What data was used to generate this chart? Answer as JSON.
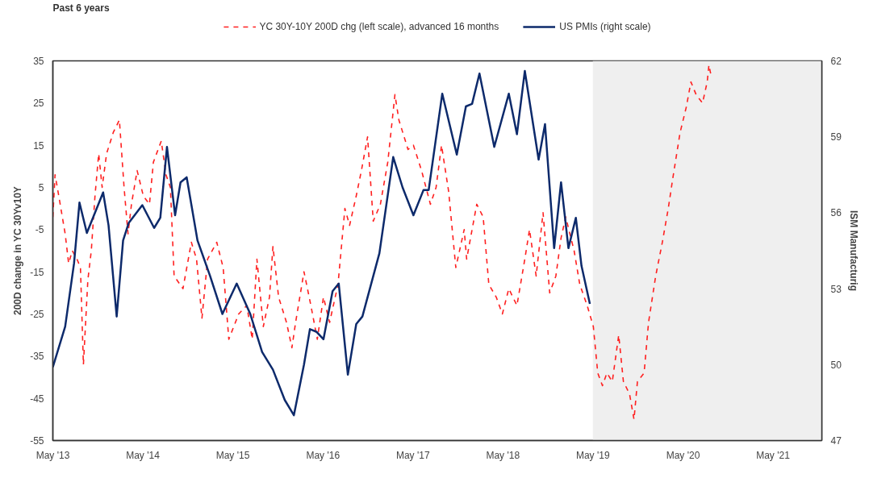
{
  "chart_data": {
    "type": "line",
    "title": "Past 6 years",
    "ylabel": "200D change in YC 30Yv10Y",
    "y2label": "ISM Manufacturig",
    "xlim": [
      "2013-05-01",
      "2021-11-15"
    ],
    "xticks": [
      {
        "value": "2013-05",
        "label": "May '13"
      },
      {
        "value": "2014-05",
        "label": "May '14"
      },
      {
        "value": "2015-05",
        "label": "May '15"
      },
      {
        "value": "2016-05",
        "label": "May '16"
      },
      {
        "value": "2017-05",
        "label": "May '17"
      },
      {
        "value": "2018-05",
        "label": "May '18"
      },
      {
        "value": "2019-05",
        "label": "May '19"
      },
      {
        "value": "2020-05",
        "label": "May '20"
      },
      {
        "value": "2021-05",
        "label": "May '21"
      }
    ],
    "ylim": [
      -55,
      35
    ],
    "yticks": [
      -55,
      -45,
      -35,
      -25,
      -15,
      -5,
      5,
      15,
      25,
      35
    ],
    "y2lim": [
      47,
      62
    ],
    "y2ticks": [
      47,
      50,
      53,
      56,
      59,
      62
    ],
    "grid": false,
    "legend": "top",
    "bands": [
      {
        "axis": "x",
        "from": "2019-05-01",
        "to": "2021-11-15",
        "color": "#efefef"
      }
    ],
    "series": [
      {
        "name": "YC 30Y-10Y 200D chg (left scale), advanced 16 months",
        "color": "#ff2020",
        "line_style": "dashed",
        "x": [
          "2013-05-01",
          "2013-05-10",
          "2013-05-25",
          "2013-06-20",
          "2013-07-04",
          "2013-07-19",
          "2013-08-07",
          "2013-08-21",
          "2013-09-02",
          "2013-09-20",
          "2013-10-04",
          "2013-10-19",
          "2013-11-03",
          "2013-11-17",
          "2013-12-05",
          "2014-01-01",
          "2014-01-26",
          "2014-02-14",
          "2014-03-02",
          "2014-03-16",
          "2014-04-08",
          "2014-05-03",
          "2014-05-28",
          "2014-06-13",
          "2014-07-15",
          "2014-08-03",
          "2014-08-21",
          "2014-09-05",
          "2014-10-11",
          "2014-11-14",
          "2014-12-05",
          "2014-12-27",
          "2015-01-19",
          "2015-02-25",
          "2015-03-23",
          "2015-04-15",
          "2015-05-25",
          "2015-06-27",
          "2015-07-19",
          "2015-08-07",
          "2015-09-02",
          "2015-09-27",
          "2015-10-11",
          "2015-11-03",
          "2015-12-05",
          "2015-12-27",
          "2016-01-11",
          "2016-02-14",
          "2016-03-13",
          "2016-04-08",
          "2016-05-03",
          "2016-05-28",
          "2016-07-01",
          "2016-07-29",
          "2016-08-17",
          "2016-09-13",
          "2016-10-04",
          "2016-10-29",
          "2016-11-21",
          "2016-12-20",
          "2017-01-19",
          "2017-02-17",
          "2017-03-05",
          "2017-04-11",
          "2017-05-03",
          "2017-06-05",
          "2017-07-11",
          "2017-08-03",
          "2017-08-25",
          "2017-09-23",
          "2017-10-22",
          "2017-11-25",
          "2017-12-05",
          "2018-01-15",
          "2018-02-10",
          "2018-03-05",
          "2018-04-04",
          "2018-04-29",
          "2018-05-25",
          "2018-06-27",
          "2018-07-29",
          "2018-08-17",
          "2018-09-13",
          "2018-10-11",
          "2018-11-07",
          "2018-12-02",
          "2018-12-23",
          "2019-01-11",
          "2019-02-14",
          "2019-03-09",
          "2019-04-08",
          "2019-05-03",
          "2019-05-21",
          "2019-06-09",
          "2019-06-27",
          "2019-07-19",
          "2019-08-14",
          "2019-09-02",
          "2019-09-27",
          "2019-10-15",
          "2019-10-29",
          "2019-11-25",
          "2019-12-13",
          "2020-01-11",
          "2020-02-07",
          "2020-03-02",
          "2020-03-20",
          "2020-04-19",
          "2020-05-14",
          "2020-06-02",
          "2020-06-23",
          "2020-07-19",
          "2020-08-07",
          "2020-08-14",
          "2020-08-21"
        ],
        "values": [
          -2,
          8,
          3,
          -6,
          -13,
          -10,
          -12,
          -14,
          -37,
          -17,
          -10,
          3,
          13,
          5,
          13,
          18,
          21,
          5,
          -6,
          1,
          9,
          3,
          1,
          11,
          16,
          8,
          5,
          -16,
          -19,
          -8,
          -12,
          -26,
          -12,
          -8,
          -14,
          -31,
          -25,
          -23,
          -31,
          -12,
          -28,
          -21,
          -9,
          -21,
          -27,
          -33,
          -27,
          -15,
          -23,
          -31,
          -21,
          -27,
          -18,
          0,
          -4,
          3,
          9,
          17,
          -3,
          1,
          11,
          27,
          21,
          14,
          15,
          9,
          1,
          5,
          15,
          4,
          -14,
          -5,
          -12,
          1,
          -2,
          -18,
          -21,
          -25,
          -19,
          -23,
          -12,
          -5,
          -16,
          -1,
          -20,
          -16,
          -7,
          -2,
          -10,
          -18,
          -23,
          -28,
          -39,
          -42,
          -39,
          -41,
          -30,
          -41,
          -44,
          -50,
          -41,
          -39,
          -27,
          -16,
          -8,
          0,
          7,
          18,
          24,
          30,
          27,
          25,
          30,
          34,
          32
        ]
      },
      {
        "name": "US PMIs (right scale)",
        "color": "#0d2a6b",
        "line_style": "solid",
        "axis": "y2",
        "x": [
          "2013-05-01",
          "2013-06-20",
          "2013-07-26",
          "2013-08-17",
          "2013-09-16",
          "2013-11-21",
          "2013-12-13",
          "2014-01-15",
          "2014-02-10",
          "2014-03-05",
          "2014-04-29",
          "2014-06-16",
          "2014-07-11",
          "2014-08-07",
          "2014-09-09",
          "2014-10-01",
          "2014-10-26",
          "2014-12-09",
          "2015-01-29",
          "2015-03-20",
          "2015-05-17",
          "2015-07-11",
          "2015-08-28",
          "2015-10-11",
          "2015-11-28",
          "2016-01-04",
          "2016-02-14",
          "2016-03-09",
          "2016-04-04",
          "2016-05-03",
          "2016-06-09",
          "2016-07-04",
          "2016-08-10",
          "2016-09-13",
          "2016-10-08",
          "2016-12-16",
          "2017-02-10",
          "2017-03-20",
          "2017-05-03",
          "2017-06-13",
          "2017-07-04",
          "2017-08-28",
          "2017-10-26",
          "2017-12-02",
          "2017-12-27",
          "2018-01-26",
          "2018-03-27",
          "2018-05-25",
          "2018-06-27",
          "2018-07-29",
          "2018-09-23",
          "2018-10-19",
          "2018-11-25",
          "2018-12-23",
          "2019-01-22",
          "2019-02-21",
          "2019-03-16",
          "2019-04-19"
        ],
        "values": [
          49.9,
          51.5,
          54.0,
          56.4,
          55.2,
          56.8,
          55.5,
          51.9,
          54.9,
          55.6,
          56.3,
          55.4,
          55.8,
          58.6,
          55.9,
          57.2,
          57.4,
          54.9,
          53.5,
          52.0,
          53.2,
          52.0,
          50.5,
          49.8,
          48.6,
          48.0,
          50.0,
          51.4,
          51.3,
          51.0,
          52.9,
          53.2,
          49.6,
          51.6,
          51.9,
          54.4,
          58.2,
          57.0,
          55.9,
          56.9,
          56.9,
          60.7,
          58.3,
          60.2,
          60.3,
          61.5,
          58.6,
          60.7,
          59.1,
          61.6,
          58.1,
          59.5,
          54.6,
          57.2,
          54.6,
          55.8,
          53.9,
          52.4
        ]
      }
    ]
  }
}
